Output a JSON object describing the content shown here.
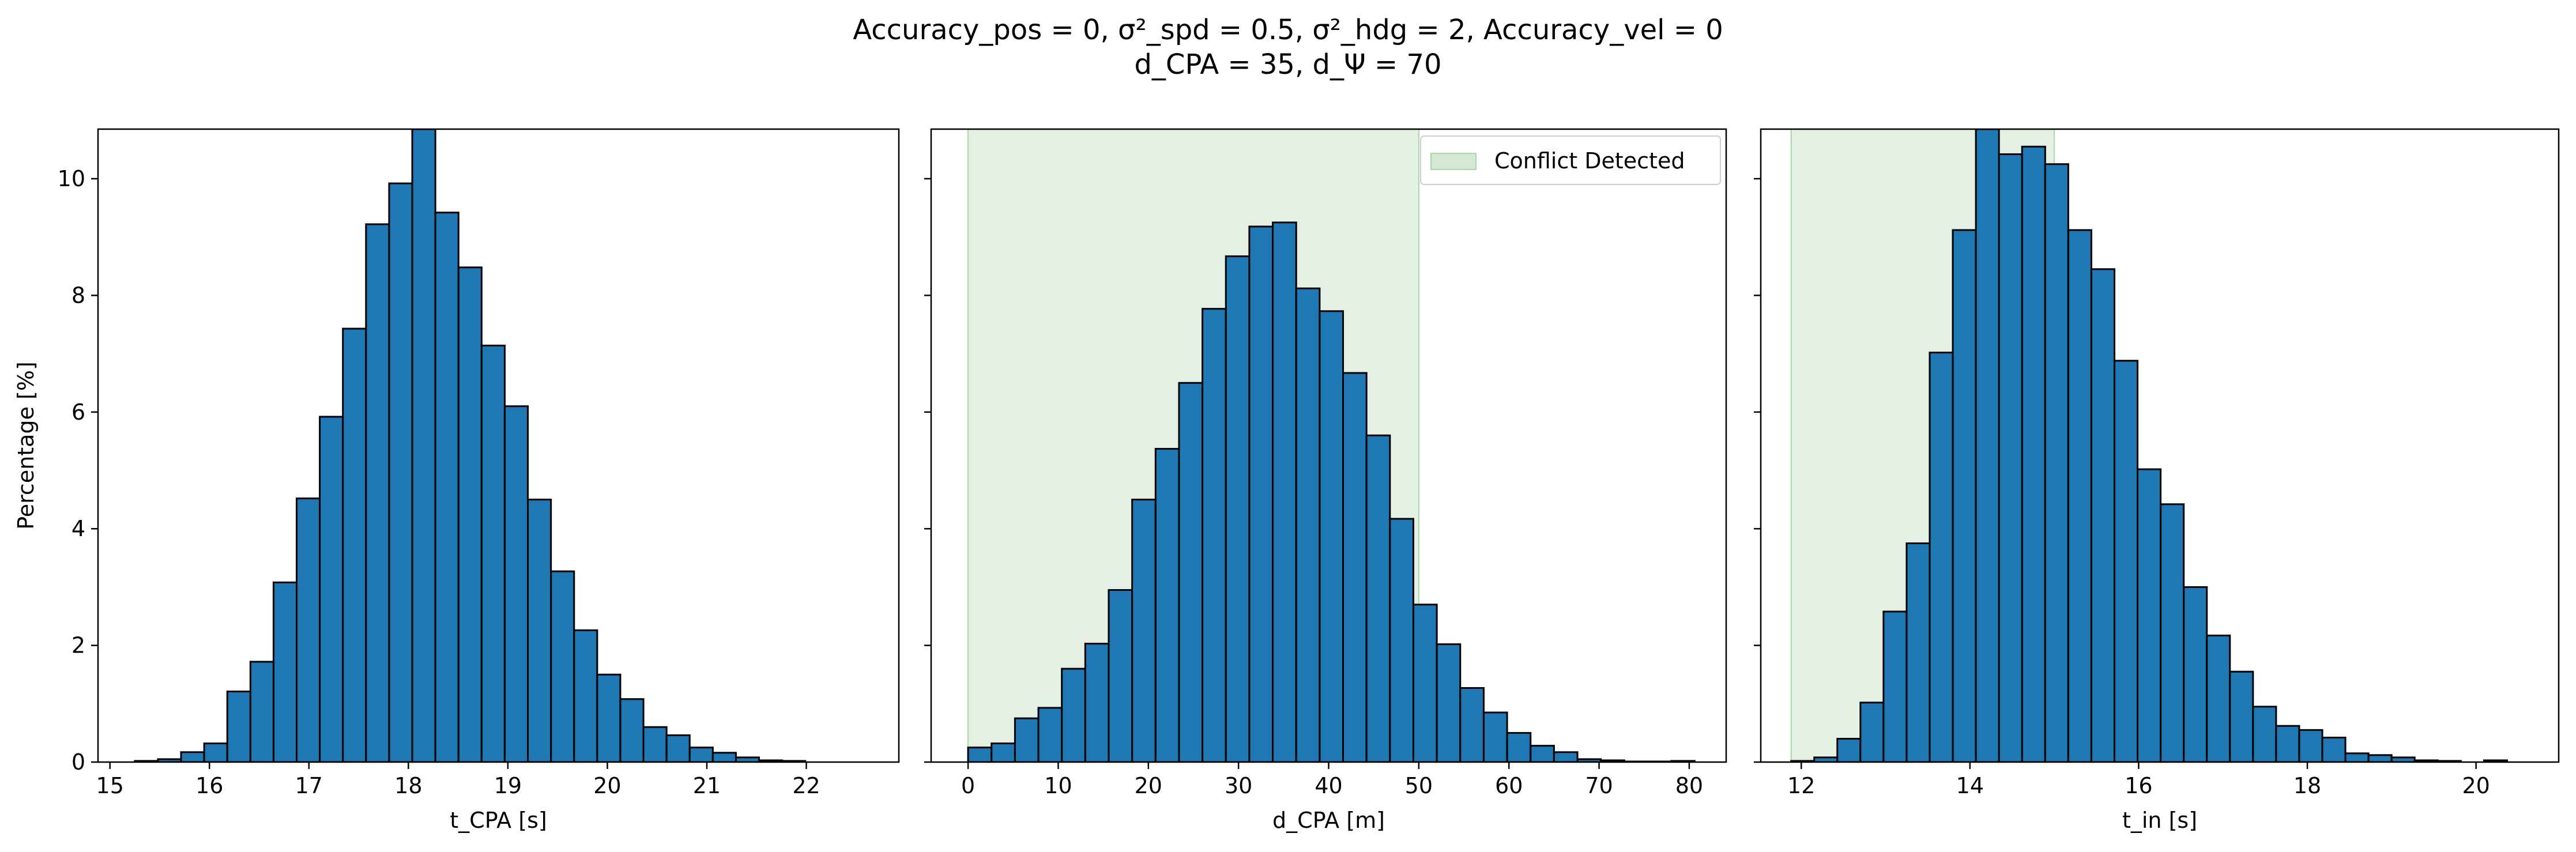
{
  "title_line1": "Accuracy_pos = 0, σ²_spd = 0.5, σ²_hdg = 2, Accuracy_vel = 0",
  "title_line2": "d_CPA = 35, d_Ψ = 70",
  "colors": {
    "bar_fill": "#1f77b4",
    "bar_edge": "#000000",
    "conflict_region": "#d5e8d4",
    "conflict_edge": "#a9d6a9"
  },
  "chart_data": [
    {
      "type": "bar",
      "xlabel": "t_CPA [s]",
      "ylabel": "Percentage [%]",
      "xlim": [
        14.88,
        22.93
      ],
      "ylim": [
        0,
        10.85
      ],
      "xticks": [
        15,
        16,
        17,
        18,
        19,
        20,
        21,
        22
      ],
      "yticks": [
        0,
        2,
        4,
        6,
        8,
        10
      ],
      "bin_edges": [
        15.25,
        15.4824,
        15.7148,
        15.9472,
        16.1796,
        16.412,
        16.6444,
        16.8768,
        17.1092,
        17.3416,
        17.574,
        17.8064,
        18.0388,
        18.2712,
        18.5036,
        18.736,
        18.9684,
        19.2008,
        19.4332,
        19.6656,
        19.898,
        20.1304,
        20.3628,
        20.5952,
        20.8276,
        21.06,
        21.2924,
        21.5248,
        21.7572,
        21.9896,
        22.222,
        22.4544,
        22.6868
      ],
      "values": [
        0.02,
        0.05,
        0.17,
        0.32,
        1.21,
        1.72,
        3.08,
        4.52,
        5.92,
        7.43,
        9.22,
        9.92,
        10.85,
        9.42,
        8.48,
        7.14,
        6.1,
        4.5,
        3.27,
        2.26,
        1.5,
        1.08,
        0.6,
        0.46,
        0.25,
        0.16,
        0.08,
        0.03,
        0.02,
        0.0,
        0.0,
        0.0
      ],
      "conflict_region": null,
      "legend": null
    },
    {
      "type": "bar",
      "xlabel": "d_CPA [m]",
      "ylabel": "",
      "xlim": [
        -4.1,
        84.1
      ],
      "ylim": [
        0,
        10.85
      ],
      "xticks": [
        0,
        10,
        20,
        30,
        40,
        50,
        60,
        70,
        80
      ],
      "yticks": [
        0,
        2,
        4,
        6,
        8,
        10
      ],
      "bin_edges": [
        0.0,
        2.6,
        5.2,
        7.8,
        10.4,
        13.0,
        15.6,
        18.2,
        20.8,
        23.4,
        26.0,
        28.6,
        31.2,
        33.8,
        36.4,
        39.0,
        41.6,
        44.2,
        46.8,
        49.4,
        52.0,
        54.6,
        57.2,
        59.8,
        62.4,
        65.0,
        67.6,
        70.2,
        72.8,
        75.4,
        78.0,
        80.6
      ],
      "values": [
        0.25,
        0.32,
        0.75,
        0.93,
        1.6,
        2.03,
        2.95,
        4.5,
        5.37,
        6.5,
        7.77,
        8.67,
        9.18,
        9.25,
        8.12,
        7.73,
        6.67,
        5.6,
        4.17,
        2.7,
        2.02,
        1.27,
        0.85,
        0.5,
        0.28,
        0.17,
        0.05,
        0.03,
        0.01,
        0.01,
        0.02
      ],
      "conflict_region": [
        0,
        50
      ],
      "legend": "Conflict Detected"
    },
    {
      "type": "bar",
      "xlabel": "t_in [s]",
      "ylabel": "",
      "xlim": [
        11.52,
        20.98
      ],
      "ylim": [
        0,
        10.85
      ],
      "xticks": [
        12,
        14,
        16,
        18,
        20
      ],
      "yticks": [
        0,
        2,
        4,
        6,
        8,
        10
      ],
      "bin_edges": [
        11.88,
        12.1538,
        12.4276,
        12.7014,
        12.9752,
        13.249,
        13.5228,
        13.7966,
        14.0704,
        14.3442,
        14.618,
        14.8918,
        15.1656,
        15.4394,
        15.7132,
        15.987,
        16.2608,
        16.5346,
        16.8084,
        17.0822,
        17.356,
        17.6298,
        17.9036,
        18.1774,
        18.4512,
        18.725,
        18.9988,
        19.2726,
        19.5464,
        19.8202,
        20.094,
        20.3678,
        20.6416
      ],
      "values": [
        0.02,
        0.08,
        0.4,
        1.02,
        2.58,
        3.75,
        7.02,
        9.12,
        10.85,
        10.42,
        10.55,
        10.25,
        9.12,
        8.45,
        6.88,
        5.02,
        4.42,
        3.0,
        2.17,
        1.55,
        0.95,
        0.62,
        0.55,
        0.42,
        0.15,
        0.12,
        0.08,
        0.03,
        0.02,
        0.0,
        0.03,
        0.0
      ],
      "conflict_region": [
        11.88,
        15.0
      ],
      "legend": null
    }
  ]
}
